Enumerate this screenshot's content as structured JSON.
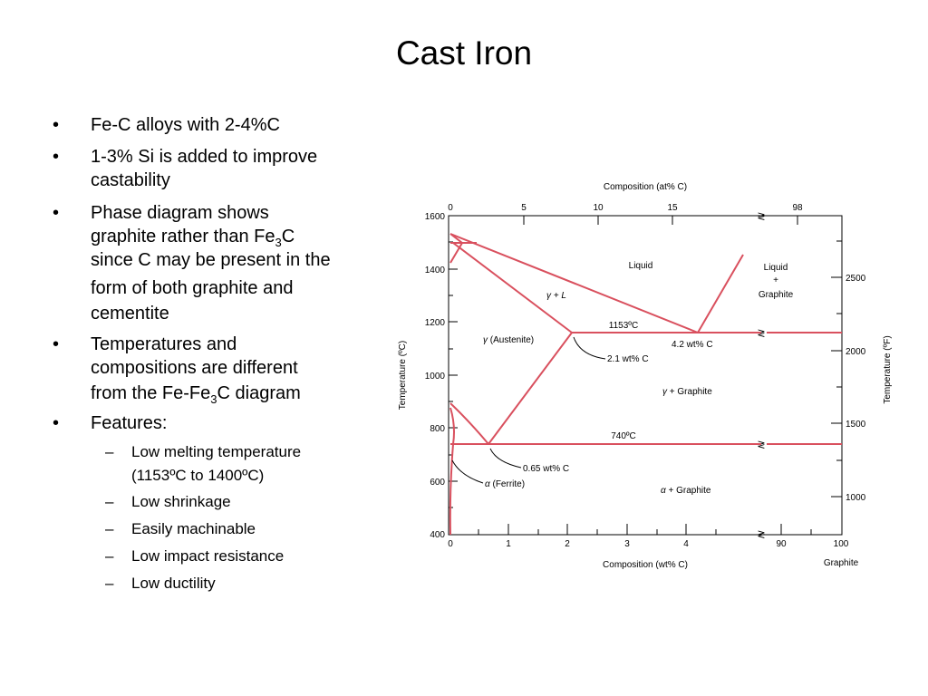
{
  "title": "Cast Iron",
  "bullets": {
    "b1": "Fe-C alloys with 2-4%C",
    "b2_l1": "1-3% Si is added to improve",
    "b2_l2": "castability",
    "b3_l1": "Phase diagram shows",
    "b3_l2a": "graphite rather than Fe",
    "b3_l2sub": "3",
    "b3_l2b": "C",
    "b3_l3": "since C may be present in the",
    "b3_l4": "form of both graphite and",
    "b3_l5": "cementite",
    "b4_l1": "Temperatures and",
    "b4_l2": "compositions are different",
    "b4_l3a": "from the Fe-Fe",
    "b4_l3sub": "3",
    "b4_l3b": "C diagram",
    "b5": "Features:",
    "s1_l1": "Low melting temperature",
    "s1_l2": "(1153ºC to 1400ºC)",
    "s2": "Low shrinkage",
    "s3": "Easily machinable",
    "s4": "Low impact resistance",
    "s5": "Low ductility"
  },
  "diagram": {
    "line_color": "#d9505e",
    "top_axis_title": "Composition (at% C)",
    "top_ticks": [
      "0",
      "5",
      "10",
      "15",
      "98"
    ],
    "bottom_axis_title": "Composition (wt% C)",
    "bottom_ticks": [
      "0",
      "1",
      "2",
      "3",
      "4",
      "90",
      "100"
    ],
    "graphite_label": "Graphite",
    "left_axis_title": "Temperature (ºC)",
    "left_ticks": [
      "1600",
      "1400",
      "1200",
      "1000",
      "800",
      "600",
      "400"
    ],
    "right_axis_title": "Temperature (ºF)",
    "right_ticks": [
      "2500",
      "2000",
      "1500",
      "1000"
    ],
    "label_liquid": "Liquid",
    "label_liquid_graphite_1": "Liquid",
    "label_liquid_graphite_2": "+",
    "label_liquid_graphite_3": "Graphite",
    "label_gamma_l_sym": "γ",
    "label_gamma_l_rest": "+ L",
    "label_austenite_sym": "γ",
    "label_austenite_rest": "(Austenite)",
    "label_1153": "1153ºC",
    "label_42wt": "4.2 wt% C",
    "label_21wt": "2.1 wt% C",
    "label_gamma_graphite_sym": "γ",
    "label_gamma_graphite_rest": "+ Graphite",
    "label_740": "740ºC",
    "label_065wt": "0.65 wt% C",
    "label_ferrite_sym": "α",
    "label_ferrite_rest": "(Ferrite)",
    "label_alpha_graphite_sym": "α",
    "label_alpha_graphite_rest": "+ Graphite",
    "break_symbol": "≷"
  }
}
